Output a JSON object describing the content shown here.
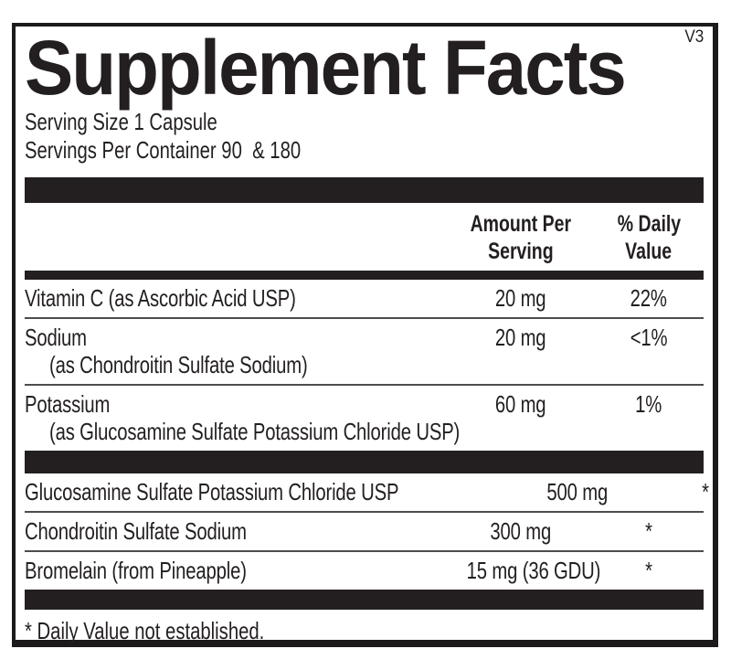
{
  "label": {
    "version_tag": "V3",
    "title": "Supplement Facts",
    "serving_size": "Serving Size 1 Capsule",
    "servings_per_container": "Servings Per Container 90  & 180",
    "header": {
      "amount_line1": "Amount Per",
      "amount_line2": "Serving",
      "dv_line1": "% Daily",
      "dv_line2": "Value"
    },
    "main_rows": [
      {
        "name": "Vitamin C (as Ascorbic Acid USP)",
        "sub": "",
        "amount": "20 mg",
        "dv": "22%"
      },
      {
        "name": "Sodium",
        "sub": "(as Chondroitin Sulfate Sodium)",
        "amount": "20 mg",
        "dv": "<1%"
      },
      {
        "name": "Potassium",
        "sub": "(as Glucosamine Sulfate Potassium Chloride USP)",
        "amount": "60 mg",
        "dv": "1%"
      }
    ],
    "other_rows": [
      {
        "name": "Glucosamine Sulfate Potassium Chloride USP",
        "amount": "500 mg",
        "dv": "*"
      },
      {
        "name": "Chondroitin Sulfate Sodium",
        "amount": "300 mg",
        "dv": "*"
      },
      {
        "name": "Bromelain (from Pineapple)",
        "amount": "15 mg (36 GDU)",
        "dv": "*"
      }
    ],
    "footnote": "* Daily Value not established.",
    "colors": {
      "ink": "#231f20",
      "divider": "#4d4d4d",
      "background": "#ffffff"
    }
  }
}
